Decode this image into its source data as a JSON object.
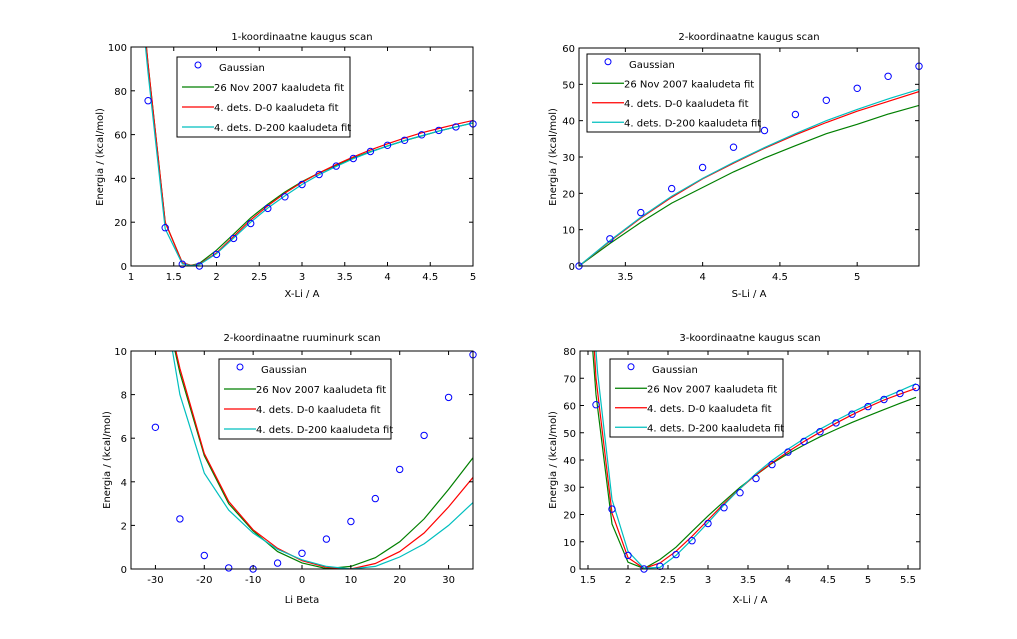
{
  "legend_labels": [
    "Gaussian",
    "26 Nov 2007 kaaludeta fit",
    "4. dets. D-0 kaaludeta fit",
    "4. dets. D-200 kaaludeta fit"
  ],
  "colors": {
    "gaussian": "#0000ff",
    "nov2007": "#007f00",
    "d0": "#ff0000",
    "d200": "#00bfbf",
    "axes": "#000000"
  },
  "chart_data": [
    {
      "type": "line",
      "title": "1-koordinaatne kaugus scan",
      "xlabel": "X-Li / A",
      "ylabel": "Energia / (kcal/mol)",
      "xlim": [
        1,
        5
      ],
      "ylim": [
        0,
        100
      ],
      "xticks": [
        1,
        1.5,
        2,
        2.5,
        3,
        3.5,
        4,
        4.5,
        5
      ],
      "xtick_labels": [
        "1",
        "1.5",
        "2",
        "2.5",
        "3",
        "3.5",
        "4",
        "4.5",
        "5"
      ],
      "yticks": [
        0,
        20,
        40,
        60,
        80,
        100
      ],
      "ytick_labels": [
        "0",
        "20",
        "40",
        "60",
        "80",
        "100"
      ],
      "legend_position": "top-left",
      "series": [
        {
          "name": "Gaussian",
          "style": "markers",
          "x": [
            1.2,
            1.4,
            1.6,
            1.8,
            2.0,
            2.2,
            2.4,
            2.6,
            2.8,
            3.0,
            3.2,
            3.4,
            3.6,
            3.8,
            4.0,
            4.2,
            4.4,
            4.6,
            4.8,
            5.0
          ],
          "y": [
            75.5,
            17.5,
            0.8,
            0.0,
            5.3,
            12.6,
            19.4,
            26.3,
            31.6,
            37.2,
            41.8,
            45.6,
            49.1,
            52.3,
            55.1,
            57.4,
            59.9,
            61.9,
            63.5,
            64.9
          ]
        },
        {
          "name": "26 Nov 2007 kaaludeta fit",
          "style": "line",
          "x": [
            1.18,
            1.2,
            1.4,
            1.6,
            1.7,
            1.8,
            2.0,
            2.2,
            2.4,
            2.6,
            2.8,
            3.0,
            3.2,
            3.4,
            3.6,
            3.8,
            4.0,
            4.2,
            4.4,
            4.6,
            4.8,
            5.0
          ],
          "y": [
            100,
            92,
            20,
            1.5,
            0.3,
            1.2,
            7.2,
            14.5,
            22.0,
            28.2,
            33.8,
            38.5,
            42.5,
            46.0,
            49.3,
            52.2,
            54.8,
            57.2,
            59.4,
            61.6,
            63.5,
            65.3
          ]
        },
        {
          "name": "4. dets. D-0 kaaludeta fit",
          "style": "line",
          "x": [
            1.18,
            1.2,
            1.4,
            1.6,
            1.7,
            1.8,
            2.0,
            2.2,
            2.4,
            2.6,
            2.8,
            3.0,
            3.2,
            3.4,
            3.6,
            3.8,
            4.0,
            4.2,
            4.4,
            4.6,
            4.8,
            5.0
          ],
          "y": [
            100,
            92,
            20,
            1.5,
            0.3,
            0.8,
            6.0,
            13.5,
            21.0,
            27.5,
            33.3,
            38.2,
            42.5,
            46.3,
            49.8,
            53.0,
            55.8,
            58.4,
            60.8,
            62.8,
            64.7,
            66.5
          ]
        },
        {
          "name": "4. dets. D-200 kaaludeta fit",
          "style": "line",
          "x": [
            1.17,
            1.2,
            1.4,
            1.6,
            1.7,
            1.8,
            2.0,
            2.2,
            2.4,
            2.6,
            2.8,
            3.0,
            3.2,
            3.4,
            3.6,
            3.8,
            4.0,
            4.2,
            4.4,
            4.6,
            4.8,
            5.0
          ],
          "y": [
            100,
            88,
            17,
            1.0,
            0.2,
            0.6,
            5.6,
            12.8,
            20.0,
            26.5,
            32.0,
            37.2,
            41.7,
            45.5,
            49.0,
            52.0,
            54.8,
            57.3,
            59.5,
            61.6,
            63.5,
            65.3
          ]
        }
      ]
    },
    {
      "type": "line",
      "title": "2-koordinaatne kaugus scan",
      "xlabel": "S-Li / A",
      "ylabel": "Energia / (kcal/mol)",
      "xlim": [
        3.2,
        5.4
      ],
      "ylim": [
        0,
        60
      ],
      "xticks": [
        3.5,
        4,
        4.5,
        5
      ],
      "xtick_labels": [
        "3.5",
        "4",
        "4.5",
        "5"
      ],
      "yticks": [
        0,
        10,
        20,
        30,
        40,
        50,
        60
      ],
      "ytick_labels": [
        "0",
        "10",
        "20",
        "30",
        "40",
        "50",
        "60"
      ],
      "legend_position": "top-left",
      "series": [
        {
          "name": "Gaussian",
          "style": "markers",
          "x": [
            3.2,
            3.4,
            3.6,
            3.8,
            4.0,
            4.2,
            4.4,
            4.6,
            4.8,
            5.0,
            5.2,
            5.4
          ],
          "y": [
            0.0,
            7.5,
            14.7,
            21.3,
            27.1,
            32.7,
            37.3,
            41.7,
            45.6,
            48.9,
            52.2,
            55.0
          ]
        },
        {
          "name": "26 Nov 2007 kaaludeta fit",
          "style": "line",
          "x": [
            3.2,
            3.4,
            3.6,
            3.8,
            4.0,
            4.2,
            4.4,
            4.6,
            4.8,
            5.0,
            5.2,
            5.4
          ],
          "y": [
            0.0,
            6.2,
            12.0,
            17.3,
            21.6,
            25.9,
            29.7,
            33.1,
            36.4,
            39.0,
            41.8,
            44.2
          ]
        },
        {
          "name": "4. dets. D-0 kaaludeta fit",
          "style": "line",
          "x": [
            3.2,
            3.4,
            3.6,
            3.8,
            4.0,
            4.2,
            4.4,
            4.6,
            4.8,
            5.0,
            5.2,
            5.4
          ],
          "y": [
            0.0,
            6.8,
            13.2,
            18.9,
            24.0,
            28.3,
            32.4,
            36.1,
            39.5,
            42.6,
            45.3,
            48.0
          ]
        },
        {
          "name": "4. dets. D-200 kaaludeta fit",
          "style": "line",
          "x": [
            3.2,
            3.4,
            3.6,
            3.8,
            4.0,
            4.2,
            4.4,
            4.6,
            4.8,
            5.0,
            5.2,
            5.4
          ],
          "y": [
            0.0,
            7.0,
            13.4,
            19.2,
            24.1,
            28.5,
            32.6,
            36.4,
            40.0,
            43.1,
            46.0,
            48.6
          ]
        }
      ]
    },
    {
      "type": "line",
      "title": "2-koordinaatne ruuminurk scan",
      "xlabel": "Li Beta",
      "ylabel": "Energia / (kcal/mol)",
      "xlim": [
        -35,
        35
      ],
      "ylim": [
        0,
        10
      ],
      "xticks": [
        -30,
        -20,
        -10,
        0,
        10,
        20,
        30
      ],
      "xtick_labels": [
        "-30",
        "-20",
        "-10",
        "0",
        "10",
        "20",
        "30"
      ],
      "yticks": [
        0,
        2,
        4,
        6,
        8,
        10
      ],
      "ytick_labels": [
        "0",
        "2",
        "4",
        "6",
        "8",
        "10"
      ],
      "legend_position": "top-center",
      "series": [
        {
          "name": "Gaussian",
          "style": "markers",
          "x": [
            -30,
            -25,
            -20,
            -15,
            -10,
            -5,
            0,
            5,
            10,
            15,
            20,
            25,
            30,
            35
          ],
          "y": [
            6.5,
            2.3,
            0.62,
            0.05,
            0.0,
            0.27,
            0.72,
            1.37,
            2.18,
            3.23,
            4.57,
            6.13,
            7.87,
            9.83
          ]
        },
        {
          "name": "26 Nov 2007 kaaludeta fit",
          "style": "line",
          "x": [
            -26,
            -25,
            -20,
            -15,
            -10,
            -5,
            0,
            5,
            10,
            15,
            20,
            25,
            30,
            35
          ],
          "y": [
            10,
            9.0,
            5.2,
            3.0,
            1.75,
            0.8,
            0.28,
            0.02,
            0.12,
            0.52,
            1.25,
            2.3,
            3.65,
            5.1
          ]
        },
        {
          "name": "4. dets. D-0 kaaludeta fit",
          "style": "line",
          "x": [
            -25.8,
            -25,
            -20,
            -15,
            -10,
            -5,
            0,
            5,
            10,
            15,
            20,
            25,
            30,
            35
          ],
          "y": [
            10,
            9.2,
            5.3,
            3.1,
            1.8,
            0.95,
            0.38,
            0.08,
            0.0,
            0.25,
            0.8,
            1.65,
            2.85,
            4.2
          ]
        },
        {
          "name": "4. dets. D-200 kaaludeta fit",
          "style": "line",
          "x": [
            -26.5,
            -25,
            -20,
            -15,
            -10,
            -5,
            0,
            5,
            10,
            15,
            20,
            25,
            30,
            35
          ],
          "y": [
            10,
            8.0,
            4.4,
            2.7,
            1.65,
            0.9,
            0.42,
            0.12,
            0.0,
            0.12,
            0.55,
            1.15,
            2.0,
            3.05
          ]
        }
      ]
    },
    {
      "type": "line",
      "title": "3-koordinaatne kaugus scan",
      "xlabel": "X-Li / A",
      "ylabel": "Energia / (kcal/mol)",
      "xlim": [
        1.4,
        5.65
      ],
      "ylim": [
        0,
        80
      ],
      "xticks": [
        1.5,
        2,
        2.5,
        3,
        3.5,
        4,
        4.5,
        5,
        5.5
      ],
      "xtick_labels": [
        "1.5",
        "2",
        "2.5",
        "3",
        "3.5",
        "4",
        "4.5",
        "5",
        "5.5"
      ],
      "yticks": [
        0,
        10,
        20,
        30,
        40,
        50,
        60,
        70,
        80
      ],
      "ytick_labels": [
        "0",
        "10",
        "20",
        "30",
        "40",
        "50",
        "60",
        "70",
        "80"
      ],
      "legend_position": "top-center",
      "series": [
        {
          "name": "Gaussian",
          "style": "markers",
          "x": [
            1.6,
            1.8,
            2.0,
            2.2,
            2.4,
            2.6,
            2.8,
            3.0,
            3.2,
            3.4,
            3.6,
            3.8,
            4.0,
            4.2,
            4.4,
            4.6,
            4.8,
            5.0,
            5.2,
            5.4,
            5.6
          ],
          "y": [
            60.3,
            22.0,
            5.0,
            0.0,
            1.0,
            5.3,
            10.4,
            16.7,
            22.5,
            28.0,
            33.2,
            38.3,
            42.9,
            46.8,
            50.4,
            53.6,
            56.8,
            59.6,
            62.2,
            64.4,
            66.6
          ]
        },
        {
          "name": "26 Nov 2007 kaaludeta fit",
          "style": "line",
          "x": [
            1.56,
            1.6,
            1.8,
            2.0,
            2.2,
            2.4,
            2.6,
            2.8,
            3.0,
            3.2,
            3.4,
            3.6,
            3.8,
            4.0,
            4.2,
            4.4,
            4.6,
            4.8,
            5.0,
            5.2,
            5.4,
            5.6
          ],
          "y": [
            80,
            64,
            16.5,
            2.5,
            0.2,
            3.5,
            8.0,
            13.8,
            19.5,
            24.8,
            30.0,
            34.5,
            38.8,
            42.3,
            45.5,
            48.5,
            51.2,
            53.8,
            56.2,
            58.5,
            60.8,
            63.0
          ]
        },
        {
          "name": "4. dets. D-0 kaaludeta fit",
          "style": "line",
          "x": [
            1.58,
            1.6,
            1.8,
            2.0,
            2.2,
            2.4,
            2.6,
            2.8,
            3.0,
            3.2,
            3.4,
            3.6,
            3.8,
            4.0,
            4.2,
            4.4,
            4.6,
            4.8,
            5.0,
            5.2,
            5.4,
            5.6
          ],
          "y": [
            80,
            70,
            20.5,
            4.2,
            0.2,
            2.2,
            6.5,
            12.0,
            18.0,
            24.0,
            29.5,
            34.6,
            39.0,
            43.0,
            46.8,
            50.2,
            53.5,
            56.6,
            59.4,
            62.0,
            64.2,
            66.3
          ]
        },
        {
          "name": "4. dets. D-200 kaaludeta fit",
          "style": "line",
          "x": [
            1.6,
            1.62,
            1.8,
            2.0,
            2.2,
            2.4,
            2.6,
            2.8,
            3.0,
            3.2,
            3.4,
            3.6,
            3.8,
            4.0,
            4.2,
            4.4,
            4.6,
            4.8,
            5.0,
            5.2,
            5.4,
            5.6
          ],
          "y": [
            80,
            72,
            25.5,
            6.5,
            0.3,
            0.6,
            5.0,
            10.8,
            17.0,
            23.5,
            29.5,
            35.0,
            39.8,
            44.0,
            47.8,
            51.3,
            54.5,
            57.5,
            60.3,
            62.9,
            65.4,
            68.0
          ]
        }
      ]
    }
  ]
}
